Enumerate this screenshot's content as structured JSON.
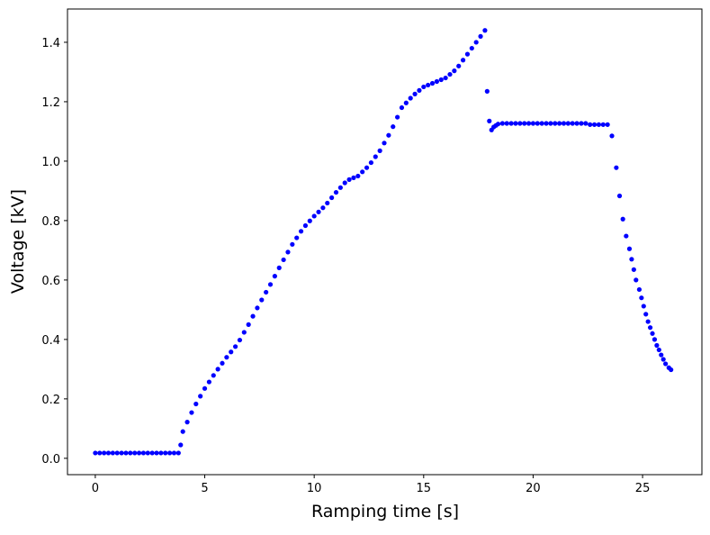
{
  "chart_data": {
    "type": "scatter",
    "xlabel": "Ramping time [s]",
    "ylabel": "Voltage [kV]",
    "xlim": [
      -1.27,
      27.71
    ],
    "ylim": [
      -0.055,
      1.512
    ],
    "xticks": [
      0,
      5,
      10,
      15,
      20,
      25
    ],
    "yticks": [
      {
        "value": 0,
        "label": "0.0"
      },
      0.2,
      0.4,
      0.6,
      0.8,
      {
        "value": 1,
        "label": "1.0"
      },
      1.2,
      1.4
    ],
    "grid": false,
    "series": [
      {
        "color": "#0000ff",
        "x": [
          0,
          0.2,
          0.4,
          0.6,
          0.8,
          1.0,
          1.2,
          1.4,
          1.6,
          1.8,
          2.0,
          2.2,
          2.4,
          2.6,
          2.8,
          3.0,
          3.2,
          3.4,
          3.6,
          3.8,
          3.9,
          4.0,
          4.2,
          4.4,
          4.6,
          4.8,
          5.0,
          5.2,
          5.4,
          5.6,
          5.8,
          6.0,
          6.2,
          6.4,
          6.6,
          6.8,
          7.0,
          7.2,
          7.4,
          7.6,
          7.8,
          8.0,
          8.2,
          8.4,
          8.6,
          8.8,
          9.0,
          9.2,
          9.4,
          9.6,
          9.8,
          10.0,
          10.2,
          10.4,
          10.6,
          10.8,
          11.0,
          11.2,
          11.4,
          11.6,
          11.8,
          12.0,
          12.2,
          12.4,
          12.6,
          12.8,
          13.0,
          13.2,
          13.4,
          13.6,
          13.8,
          14.0,
          14.2,
          14.4,
          14.6,
          14.8,
          15.0,
          15.2,
          15.4,
          15.6,
          15.8,
          16.0,
          16.2,
          16.4,
          16.6,
          16.8,
          17.0,
          17.2,
          17.4,
          17.6,
          17.8,
          17.9,
          18.0,
          18.1,
          18.2,
          18.3,
          18.4,
          18.6,
          18.8,
          19.0,
          19.2,
          19.4,
          19.6,
          19.8,
          20.0,
          20.2,
          20.4,
          20.6,
          20.8,
          21.0,
          21.2,
          21.4,
          21.6,
          21.8,
          22.0,
          22.2,
          22.4,
          22.6,
          22.8,
          23.0,
          23.2,
          23.4,
          23.6,
          23.8,
          23.95,
          24.1,
          24.25,
          24.4,
          24.5,
          24.6,
          24.7,
          24.85,
          24.95,
          25.05,
          25.15,
          25.25,
          25.35,
          25.45,
          25.55,
          25.65,
          25.75,
          25.85,
          25.95,
          26.05,
          26.2,
          26.3
        ],
        "values": [
          0.018,
          0.018,
          0.018,
          0.018,
          0.018,
          0.018,
          0.018,
          0.018,
          0.018,
          0.018,
          0.018,
          0.018,
          0.018,
          0.018,
          0.018,
          0.018,
          0.018,
          0.018,
          0.018,
          0.018,
          0.045,
          0.09,
          0.122,
          0.154,
          0.183,
          0.209,
          0.235,
          0.257,
          0.279,
          0.3,
          0.32,
          0.34,
          0.358,
          0.376,
          0.398,
          0.424,
          0.45,
          0.478,
          0.506,
          0.533,
          0.559,
          0.585,
          0.613,
          0.641,
          0.668,
          0.694,
          0.72,
          0.742,
          0.764,
          0.783,
          0.799,
          0.815,
          0.829,
          0.843,
          0.859,
          0.877,
          0.895,
          0.911,
          0.927,
          0.938,
          0.944,
          0.95,
          0.964,
          0.978,
          0.995,
          1.015,
          1.035,
          1.061,
          1.087,
          1.116,
          1.148,
          1.18,
          1.196,
          1.212,
          1.226,
          1.238,
          1.25,
          1.256,
          1.262,
          1.268,
          1.274,
          1.28,
          1.292,
          1.304,
          1.32,
          1.34,
          1.36,
          1.38,
          1.4,
          1.42,
          1.44,
          1.235,
          1.135,
          1.105,
          1.115,
          1.12,
          1.125,
          1.127,
          1.127,
          1.127,
          1.127,
          1.127,
          1.127,
          1.127,
          1.127,
          1.127,
          1.127,
          1.127,
          1.127,
          1.127,
          1.127,
          1.127,
          1.127,
          1.127,
          1.127,
          1.127,
          1.127,
          1.123,
          1.123,
          1.123,
          1.123,
          1.123,
          1.085,
          0.978,
          0.883,
          0.805,
          0.748,
          0.705,
          0.67,
          0.635,
          0.6,
          0.568,
          0.54,
          0.512,
          0.485,
          0.46,
          0.44,
          0.42,
          0.4,
          0.38,
          0.365,
          0.348,
          0.333,
          0.318,
          0.305,
          0.298
        ]
      }
    ]
  }
}
